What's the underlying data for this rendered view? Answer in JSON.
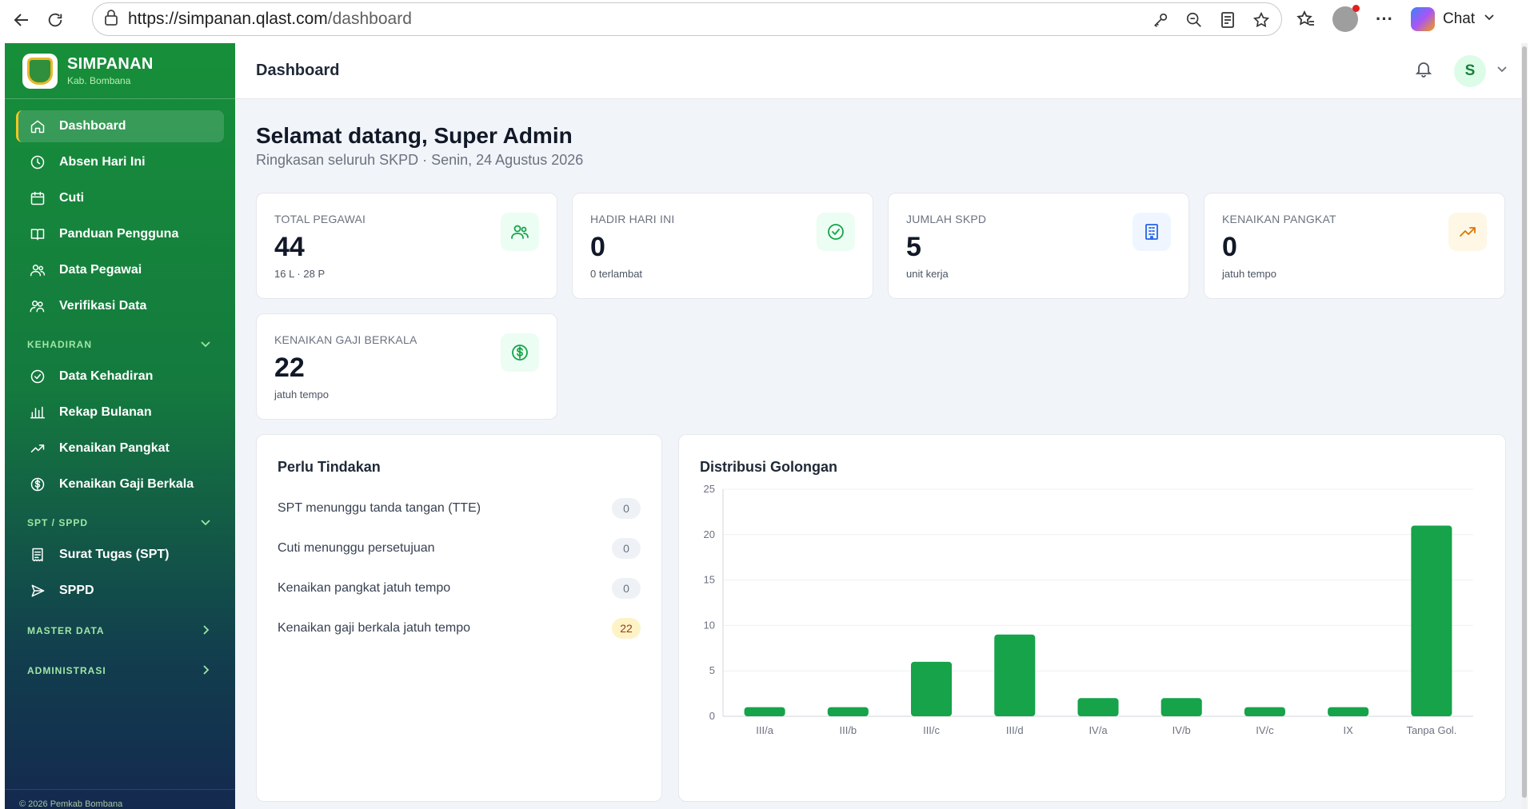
{
  "browser": {
    "url_host": "https://simpanan.qlast.com",
    "url_path": "/dashboard",
    "chat_label": "Chat"
  },
  "sidebar": {
    "brand_title": "SIMPANAN",
    "brand_sub": "Kab. Bombana",
    "main_items": [
      {
        "label": "Dashboard",
        "icon": "home-icon",
        "active": true
      },
      {
        "label": "Absen Hari Ini",
        "icon": "clock-icon"
      },
      {
        "label": "Cuti",
        "icon": "calendar-icon"
      },
      {
        "label": "Panduan Pengguna",
        "icon": "book-icon"
      },
      {
        "label": "Data Pegawai",
        "icon": "users-icon"
      },
      {
        "label": "Verifikasi Data",
        "icon": "user-check-icon"
      }
    ],
    "kehadiran_title": "KEHADIRAN",
    "kehadiran_items": [
      {
        "label": "Data Kehadiran",
        "icon": "check-circle-icon"
      },
      {
        "label": "Rekap Bulanan",
        "icon": "bar-chart-icon"
      },
      {
        "label": "Kenaikan Pangkat",
        "icon": "trending-up-icon"
      },
      {
        "label": "Kenaikan Gaji Berkala",
        "icon": "dollar-circle-icon"
      }
    ],
    "spt_title": "SPT / SPPD",
    "spt_items": [
      {
        "label": "Surat Tugas (SPT)",
        "icon": "receipt-icon"
      },
      {
        "label": "SPPD",
        "icon": "send-icon"
      }
    ],
    "master_title": "MASTER DATA",
    "admin_title": "ADMINISTRASI",
    "footer": "© 2026 Pemkab Bombana"
  },
  "topbar": {
    "title": "Dashboard",
    "avatar_initial": "S"
  },
  "greeting": {
    "title": "Selamat datang, Super Admin",
    "subtitle": "Ringkasan seluruh SKPD · Senin, 24 Agustus 2026"
  },
  "stats": [
    {
      "label": "TOTAL PEGAWAI",
      "value": "44",
      "sub": "16 L · 28 P",
      "icon": "users-icon",
      "color": "#16a34a",
      "bg": "#ecfdf3"
    },
    {
      "label": "HADIR HARI INI",
      "value": "0",
      "sub": "0 terlambat",
      "icon": "check-circle-icon",
      "color": "#16a34a",
      "bg": "#ecfdf3"
    },
    {
      "label": "JUMLAH SKPD",
      "value": "5",
      "sub": "unit kerja",
      "icon": "building-icon",
      "color": "#2563eb",
      "bg": "#eff6ff"
    },
    {
      "label": "KENAIKAN PANGKAT",
      "value": "0",
      "sub": "jatuh tempo",
      "icon": "trending-up-icon",
      "color": "#d97706",
      "bg": "#fff7e6"
    },
    {
      "label": "KENAIKAN GAJI BERKALA",
      "value": "22",
      "sub": "jatuh tempo",
      "icon": "dollar-circle-icon",
      "color": "#16a34a",
      "bg": "#ecfdf3"
    }
  ],
  "actions": {
    "title": "Perlu Tindakan",
    "rows": [
      {
        "label": "SPT menunggu tanda tangan (TTE)",
        "count": "0",
        "warn": false
      },
      {
        "label": "Cuti menunggu persetujuan",
        "count": "0",
        "warn": false
      },
      {
        "label": "Kenaikan pangkat jatuh tempo",
        "count": "0",
        "warn": false
      },
      {
        "label": "Kenaikan gaji berkala jatuh tempo",
        "count": "22",
        "warn": true
      }
    ]
  },
  "chart": {
    "title": "Distribusi Golongan"
  },
  "chart_data": {
    "type": "bar",
    "title": "Distribusi Golongan",
    "categories": [
      "III/a",
      "III/b",
      "III/c",
      "III/d",
      "IV/a",
      "IV/b",
      "IV/c",
      "IX",
      "Tanpa Gol."
    ],
    "values": [
      1,
      1,
      6,
      9,
      2,
      2,
      1,
      1,
      21
    ],
    "ylim": [
      0,
      25
    ],
    "yticks": [
      0,
      5,
      10,
      15,
      20,
      25
    ],
    "bar_color": "#16a34a",
    "grid": true,
    "xlabel": "",
    "ylabel": ""
  }
}
